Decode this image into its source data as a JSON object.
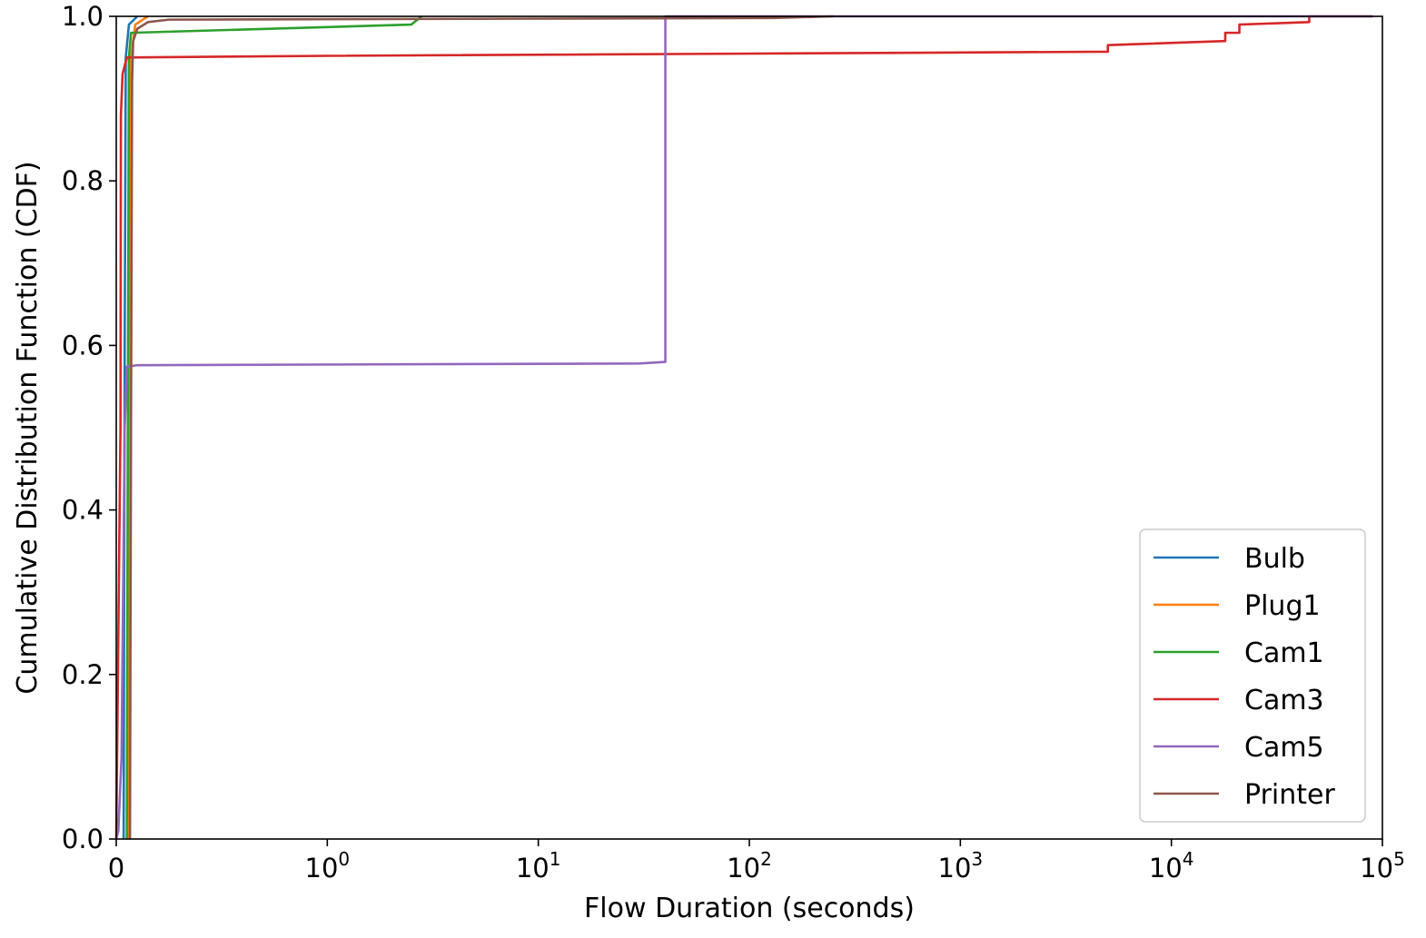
{
  "chart_data": {
    "type": "line",
    "title": "",
    "xlabel": "Flow Duration (seconds)",
    "ylabel": "Cumulative Distribution Function (CDF)",
    "x_scale": "symlog",
    "xlim": [
      0,
      100000
    ],
    "ylim": [
      0,
      1.0
    ],
    "grid": false,
    "legend_position": "lower-right",
    "x_ticks": [
      {
        "value": 0,
        "base": "0",
        "exp": ""
      },
      {
        "value": 1,
        "base": "10",
        "exp": "0"
      },
      {
        "value": 10,
        "base": "10",
        "exp": "1"
      },
      {
        "value": 100,
        "base": "10",
        "exp": "2"
      },
      {
        "value": 1000,
        "base": "10",
        "exp": "3"
      },
      {
        "value": 10000,
        "base": "10",
        "exp": "4"
      },
      {
        "value": 100000,
        "base": "10",
        "exp": "5"
      }
    ],
    "y_ticks": [
      {
        "value": 0.0,
        "label": "0.0"
      },
      {
        "value": 0.2,
        "label": "0.2"
      },
      {
        "value": 0.4,
        "label": "0.4"
      },
      {
        "value": 0.6,
        "label": "0.6"
      },
      {
        "value": 0.8,
        "label": "0.8"
      },
      {
        "value": 1.0,
        "label": "1.0"
      }
    ],
    "series": [
      {
        "name": "Bulb",
        "color": "#1f77b4",
        "points": [
          [
            0.035,
            0.0
          ],
          [
            0.04,
            0.6
          ],
          [
            0.045,
            0.95
          ],
          [
            0.06,
            0.99
          ],
          [
            0.1,
            1.0
          ]
        ]
      },
      {
        "name": "Plug1",
        "color": "#ff7f0e",
        "points": [
          [
            0.06,
            0.0
          ],
          [
            0.065,
            0.6
          ],
          [
            0.07,
            0.95
          ],
          [
            0.09,
            0.99
          ],
          [
            0.15,
            1.0
          ]
        ]
      },
      {
        "name": "Cam1",
        "color": "#2ca02c",
        "points": [
          [
            0.05,
            0.0
          ],
          [
            0.055,
            0.5
          ],
          [
            0.06,
            0.95
          ],
          [
            0.07,
            0.98
          ],
          [
            2.5,
            0.99
          ],
          [
            2.8,
            1.0
          ]
        ]
      },
      {
        "name": "Cam3",
        "color": "#d62728",
        "points": [
          [
            0.0,
            0.0
          ],
          [
            0.02,
            0.5
          ],
          [
            0.022,
            0.88
          ],
          [
            0.03,
            0.93
          ],
          [
            0.05,
            0.95
          ],
          [
            1.0,
            0.952
          ],
          [
            5000,
            0.957
          ],
          [
            5000,
            0.965
          ],
          [
            18000,
            0.97
          ],
          [
            18000,
            0.98
          ],
          [
            21000,
            0.98
          ],
          [
            21000,
            0.99
          ],
          [
            45000,
            0.993
          ],
          [
            45000,
            1.0
          ],
          [
            90000,
            1.0
          ]
        ]
      },
      {
        "name": "Cam5",
        "color": "#9467bd",
        "points": [
          [
            0.0,
            0.0
          ],
          [
            0.01,
            0.01
          ],
          [
            0.025,
            0.1
          ],
          [
            0.04,
            0.5
          ],
          [
            0.05,
            0.574
          ],
          [
            0.1,
            0.576
          ],
          [
            30,
            0.578
          ],
          [
            40,
            0.58
          ],
          [
            40,
            1.0
          ],
          [
            90000,
            1.0
          ]
        ]
      },
      {
        "name": "Printer",
        "color": "#8c564b",
        "points": [
          [
            0.065,
            0.0
          ],
          [
            0.07,
            0.5
          ],
          [
            0.075,
            0.92
          ],
          [
            0.08,
            0.97
          ],
          [
            0.1,
            0.985
          ],
          [
            0.15,
            0.993
          ],
          [
            0.25,
            0.996
          ],
          [
            130,
            0.998
          ],
          [
            250,
            1.0
          ]
        ]
      }
    ]
  }
}
